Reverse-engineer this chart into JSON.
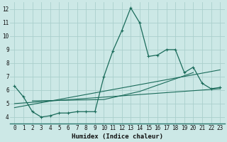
{
  "xlabel": "Humidex (Indice chaleur)",
  "bg_color": "#cce8e6",
  "grid_color": "#aacfcc",
  "line_color": "#1a6b5a",
  "xlim": [
    -0.5,
    23.5
  ],
  "ylim": [
    3.5,
    12.5
  ],
  "xtick_labels": [
    "0",
    "1",
    "2",
    "3",
    "4",
    "5",
    "6",
    "7",
    "8",
    "9",
    "10",
    "11",
    "12",
    "13",
    "14",
    "15",
    "16",
    "17",
    "18",
    "19",
    "20",
    "21",
    "22",
    "23"
  ],
  "xtick_vals": [
    0,
    1,
    2,
    3,
    4,
    5,
    6,
    7,
    8,
    9,
    10,
    11,
    12,
    13,
    14,
    15,
    16,
    17,
    18,
    19,
    20,
    21,
    22,
    23
  ],
  "ytick_vals": [
    4,
    5,
    6,
    7,
    8,
    9,
    10,
    11,
    12
  ],
  "series1_x": [
    0,
    1,
    2,
    3,
    4,
    5,
    6,
    7,
    8,
    9,
    10,
    11,
    12,
    13,
    14,
    15,
    16,
    17,
    18,
    19,
    20,
    21,
    22,
    23
  ],
  "series1_y": [
    6.3,
    5.5,
    4.4,
    4.0,
    4.1,
    4.3,
    4.3,
    4.4,
    4.4,
    4.4,
    7.0,
    8.9,
    10.4,
    12.1,
    11.0,
    8.5,
    8.6,
    9.0,
    9.0,
    7.3,
    7.7,
    6.5,
    6.1,
    6.2
  ],
  "series2_x": [
    0,
    23
  ],
  "series2_y": [
    5.0,
    6.1
  ],
  "series3_x": [
    0,
    23
  ],
  "series3_y": [
    4.7,
    7.5
  ],
  "series4_x": [
    2,
    10,
    14,
    20
  ],
  "series4_y": [
    5.2,
    5.3,
    5.9,
    7.3
  ]
}
